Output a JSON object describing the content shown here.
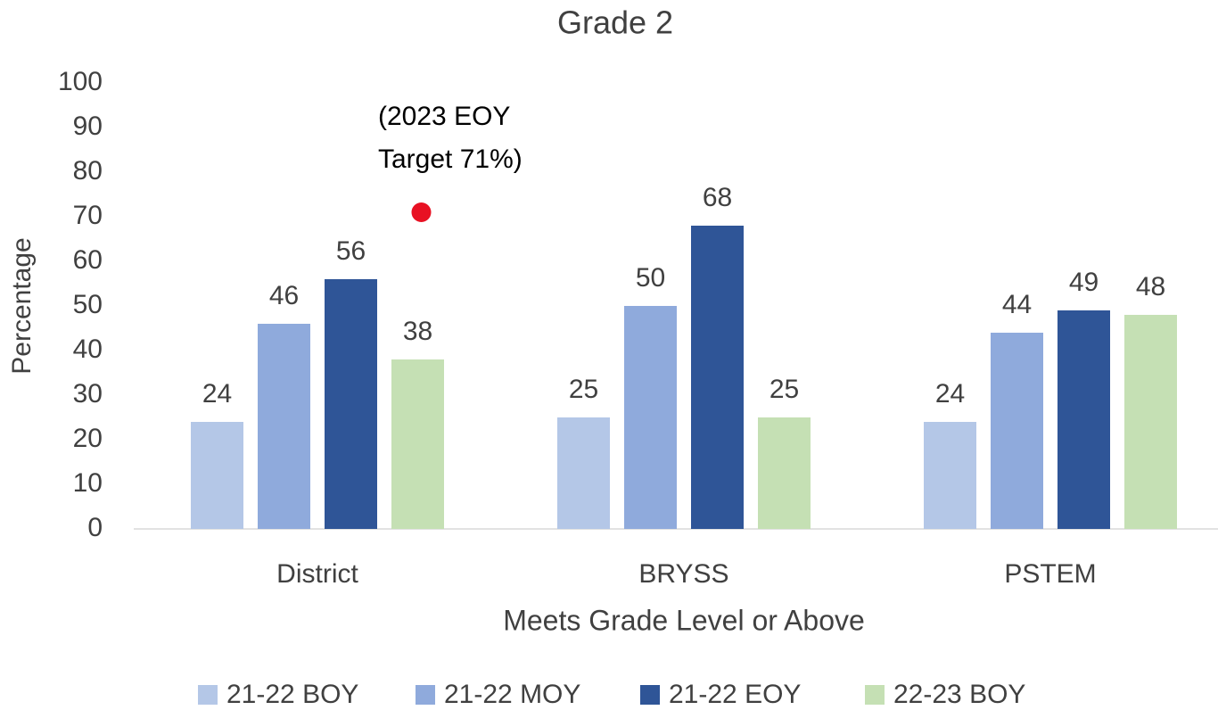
{
  "chart_data": {
    "type": "bar",
    "title": "Grade 2",
    "categories": [
      "District",
      "BRYSS",
      "PSTEM"
    ],
    "series": [
      {
        "name": "21-22 BOY",
        "color": "#b4c7e7",
        "values": [
          24,
          25,
          24
        ]
      },
      {
        "name": "21-22 MOY",
        "color": "#8faadc",
        "values": [
          46,
          50,
          44
        ]
      },
      {
        "name": "21-22 EOY",
        "color": "#2f5597",
        "values": [
          56,
          68,
          49
        ]
      },
      {
        "name": "22-23 BOY",
        "color": "#c5e0b4",
        "values": [
          38,
          25,
          48
        ]
      }
    ],
    "target": {
      "lines": [
        "(2023 EOY",
        "Target 71%)"
      ],
      "value": 71,
      "color": "#e81123"
    },
    "xlabel": "Meets Grade Level or Above",
    "ylabel": "Percentage",
    "ylim": [
      0,
      100
    ],
    "yticks": [
      0,
      10,
      20,
      30,
      40,
      50,
      60,
      70,
      80,
      90,
      100
    ],
    "grid": false,
    "legend": "bottom"
  }
}
